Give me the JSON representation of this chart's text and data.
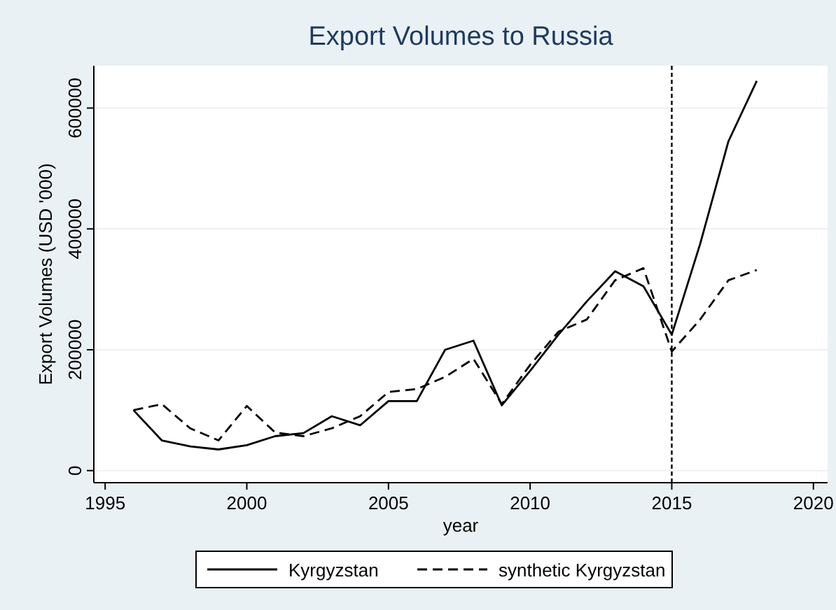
{
  "chart_data": {
    "type": "line",
    "title": "Export Volumes to Russia",
    "xlabel": "year",
    "ylabel": "Export Volumes (USD '000)",
    "x": [
      1996,
      1997,
      1998,
      1999,
      2000,
      2001,
      2002,
      2003,
      2004,
      2005,
      2006,
      2007,
      2008,
      2009,
      2010,
      2011,
      2012,
      2013,
      2014,
      2015,
      2016,
      2017,
      2018
    ],
    "series": [
      {
        "name": "Kyrgyzstan",
        "color": "#000000",
        "line_style": "solid",
        "values": [
          100000,
          50000,
          40000,
          35000,
          42000,
          57000,
          62000,
          90000,
          75000,
          115000,
          115000,
          200000,
          215000,
          108000,
          165000,
          225000,
          280000,
          330000,
          305000,
          225000,
          375000,
          545000,
          645000
        ]
      },
      {
        "name": "synthetic Kyrgyzstan",
        "color": "#000000",
        "line_style": "dashed",
        "values": [
          100000,
          110000,
          70000,
          50000,
          107000,
          63000,
          57000,
          70000,
          90000,
          130000,
          135000,
          155000,
          185000,
          110000,
          175000,
          230000,
          250000,
          315000,
          335000,
          197000,
          250000,
          315000,
          332000
        ]
      }
    ],
    "xlim": [
      1994.6,
      2020.5
    ],
    "xticks": [
      1995,
      2000,
      2005,
      2010,
      2015,
      2020
    ],
    "ylim": [
      -20000,
      670000
    ],
    "yticks": [
      0,
      200000,
      400000,
      600000
    ],
    "grid": "y",
    "legend": "bottom",
    "ref_lines": [
      {
        "axis": "x",
        "value": 2015,
        "color": "#000000",
        "line_style": "dotted"
      }
    ]
  }
}
